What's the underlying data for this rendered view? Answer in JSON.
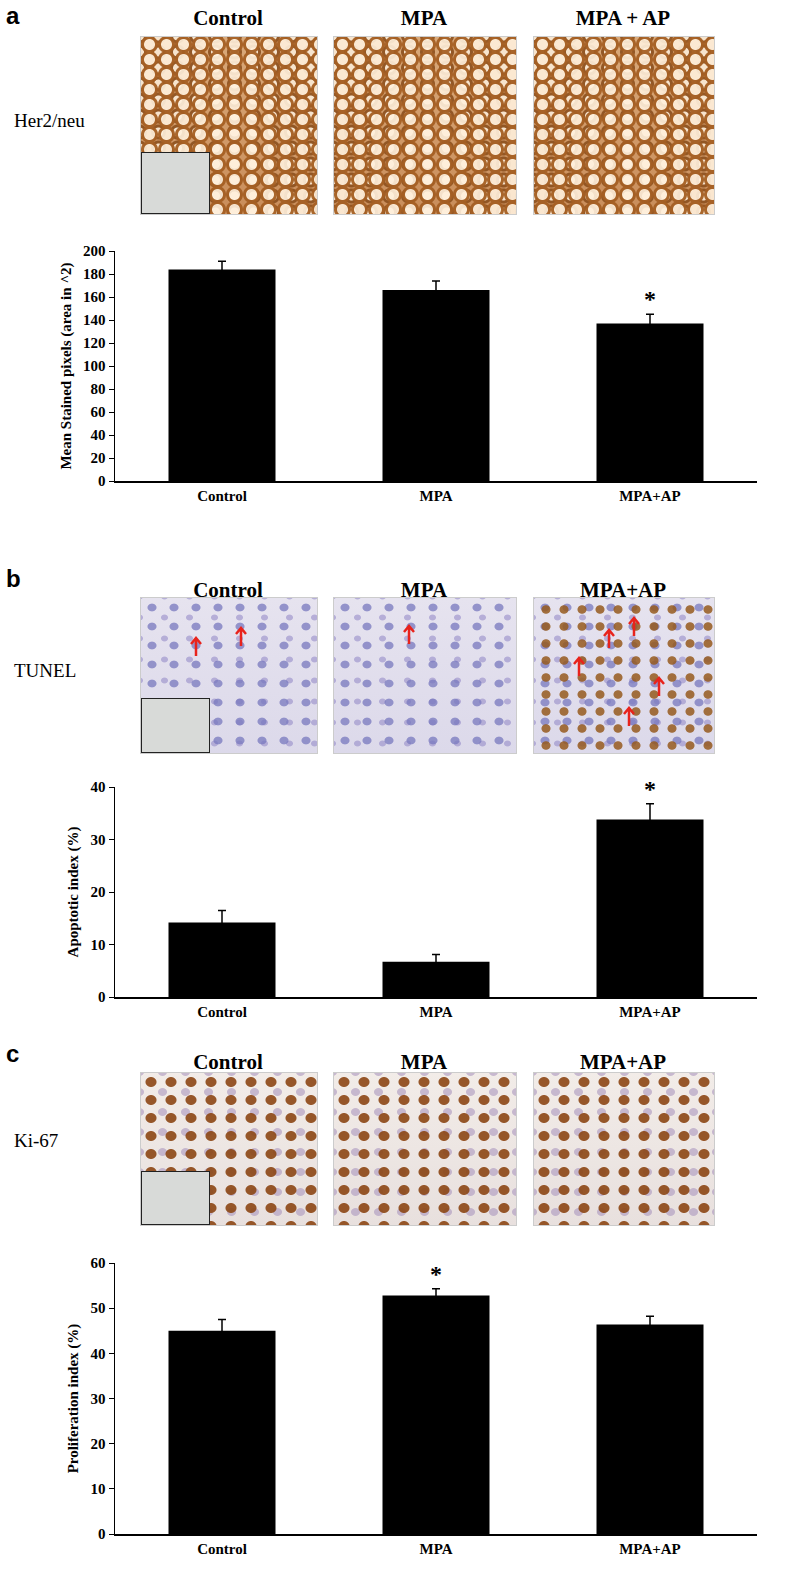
{
  "chart_data": [
    {
      "type": "bar",
      "panel": "a",
      "stain": "Her2/neu",
      "image_titles": [
        "Control",
        "MPA",
        "MPA + AP"
      ],
      "categories": [
        "Control",
        "MPA",
        "MPA+AP"
      ],
      "values": [
        184,
        166,
        137
      ],
      "errors": [
        7,
        8,
        8
      ],
      "color": "#000000",
      "y_label": "Mean Stained pixels (area in ^2)",
      "ylim": [
        0,
        200
      ],
      "yticks": [
        0,
        20,
        40,
        60,
        80,
        100,
        120,
        140,
        160,
        180,
        200
      ],
      "grid": false,
      "annotations": [
        {
          "category": "MPA+AP",
          "text": "*"
        }
      ]
    },
    {
      "type": "bar",
      "panel": "b",
      "stain": "TUNEL",
      "image_titles": [
        "Control",
        "MPA",
        "MPA+AP"
      ],
      "categories": [
        "Control",
        "MPA",
        "MPA+AP"
      ],
      "values": [
        14.2,
        6.7,
        33.8
      ],
      "errors": [
        2.3,
        1.4,
        3.0
      ],
      "color": "#000000",
      "y_label": "Apoptotic index (%)",
      "ylim": [
        0,
        40
      ],
      "yticks": [
        0,
        10,
        20,
        30,
        40
      ],
      "grid": false,
      "annotations": [
        {
          "category": "MPA+AP",
          "text": "*"
        }
      ]
    },
    {
      "type": "bar",
      "panel": "c",
      "stain": "Ki-67",
      "image_titles": [
        "Control",
        "MPA",
        "MPA+AP"
      ],
      "categories": [
        "Control",
        "MPA",
        "MPA+AP"
      ],
      "values": [
        45.0,
        52.8,
        46.4
      ],
      "errors": [
        2.5,
        1.5,
        1.8
      ],
      "color": "#000000",
      "y_label": "Proliferation index (%)",
      "ylim": [
        0,
        60
      ],
      "yticks": [
        0,
        10,
        20,
        30,
        40,
        50,
        60
      ],
      "grid": false,
      "annotations": [
        {
          "category": "MPA",
          "text": "*"
        }
      ]
    }
  ]
}
